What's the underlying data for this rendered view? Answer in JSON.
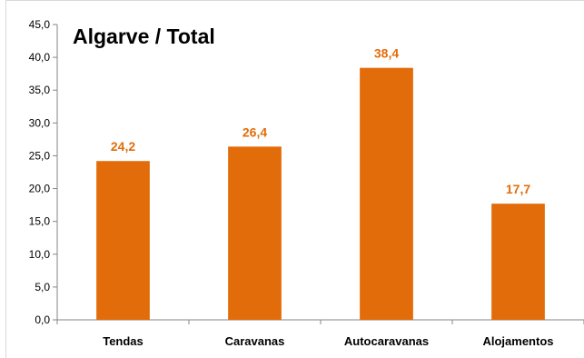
{
  "chart_data": {
    "type": "bar",
    "title": "Algarve / Total",
    "categories": [
      "Tendas",
      "Caravanas",
      "Autocaravanas",
      "Alojamentos"
    ],
    "values": [
      24.2,
      26.4,
      38.4,
      17.7
    ],
    "value_labels": [
      "24,2",
      "26,4",
      "38,4",
      "17,7"
    ],
    "ylim": [
      0,
      45
    ],
    "yticks": [
      "0,0",
      "5,0",
      "10,0",
      "15,0",
      "20,0",
      "25,0",
      "30,0",
      "35,0",
      "40,0",
      "45,0"
    ],
    "xlabel": "",
    "ylabel": "",
    "grid": false,
    "legend": "none",
    "bar_color": "#e36c0a",
    "label_color": "#e36c0a"
  }
}
